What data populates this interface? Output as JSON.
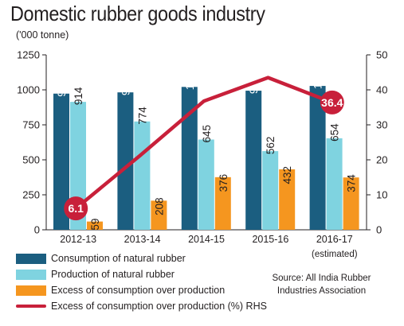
{
  "title": "Domestic rubber goods industry",
  "unit": "('000 tonne)",
  "source": "Source: All India Rubber Industries Association",
  "colors": {
    "consumption": "#1b5e80",
    "production": "#7fd3e0",
    "excess": "#f5961f",
    "line": "#c8203a"
  },
  "chart_data": {
    "type": "bar",
    "categories": [
      "2012-13",
      "2013-14",
      "2014-15",
      "2015-16",
      "2016-17"
    ],
    "category_notes": [
      "",
      "",
      "",
      "",
      "(estimated)"
    ],
    "series": [
      {
        "name": "Consumption of natural rubber",
        "values": [
          973,
          982,
          1021,
          994,
          1028
        ],
        "labels": [
          "973",
          "982",
          "1,021",
          "994",
          "1,028"
        ]
      },
      {
        "name": "Production of natural rubber",
        "values": [
          914,
          774,
          645,
          562,
          654
        ],
        "labels": [
          "914",
          "774",
          "645",
          "562",
          "654"
        ]
      },
      {
        "name": "Excess of consumption over production",
        "values": [
          59,
          208,
          376,
          432,
          374
        ],
        "labels": [
          "59",
          "208",
          "376",
          "432",
          "374"
        ]
      }
    ],
    "line_series": {
      "name": "Excess of consumption over production (%) RHS",
      "type": "line",
      "axis": "right",
      "values": [
        6.1,
        21.2,
        36.8,
        43.5,
        36.4
      ],
      "highlight_labels": [
        "6.1",
        "",
        "",
        "",
        "36.4"
      ]
    },
    "ylim": [
      0,
      1250
    ],
    "yticks": [
      0,
      250,
      500,
      750,
      1000,
      1250
    ],
    "y2lim": [
      0,
      50
    ],
    "y2ticks": [
      0,
      10,
      20,
      30,
      40,
      50
    ],
    "grid": false,
    "legend_position": "bottom"
  }
}
